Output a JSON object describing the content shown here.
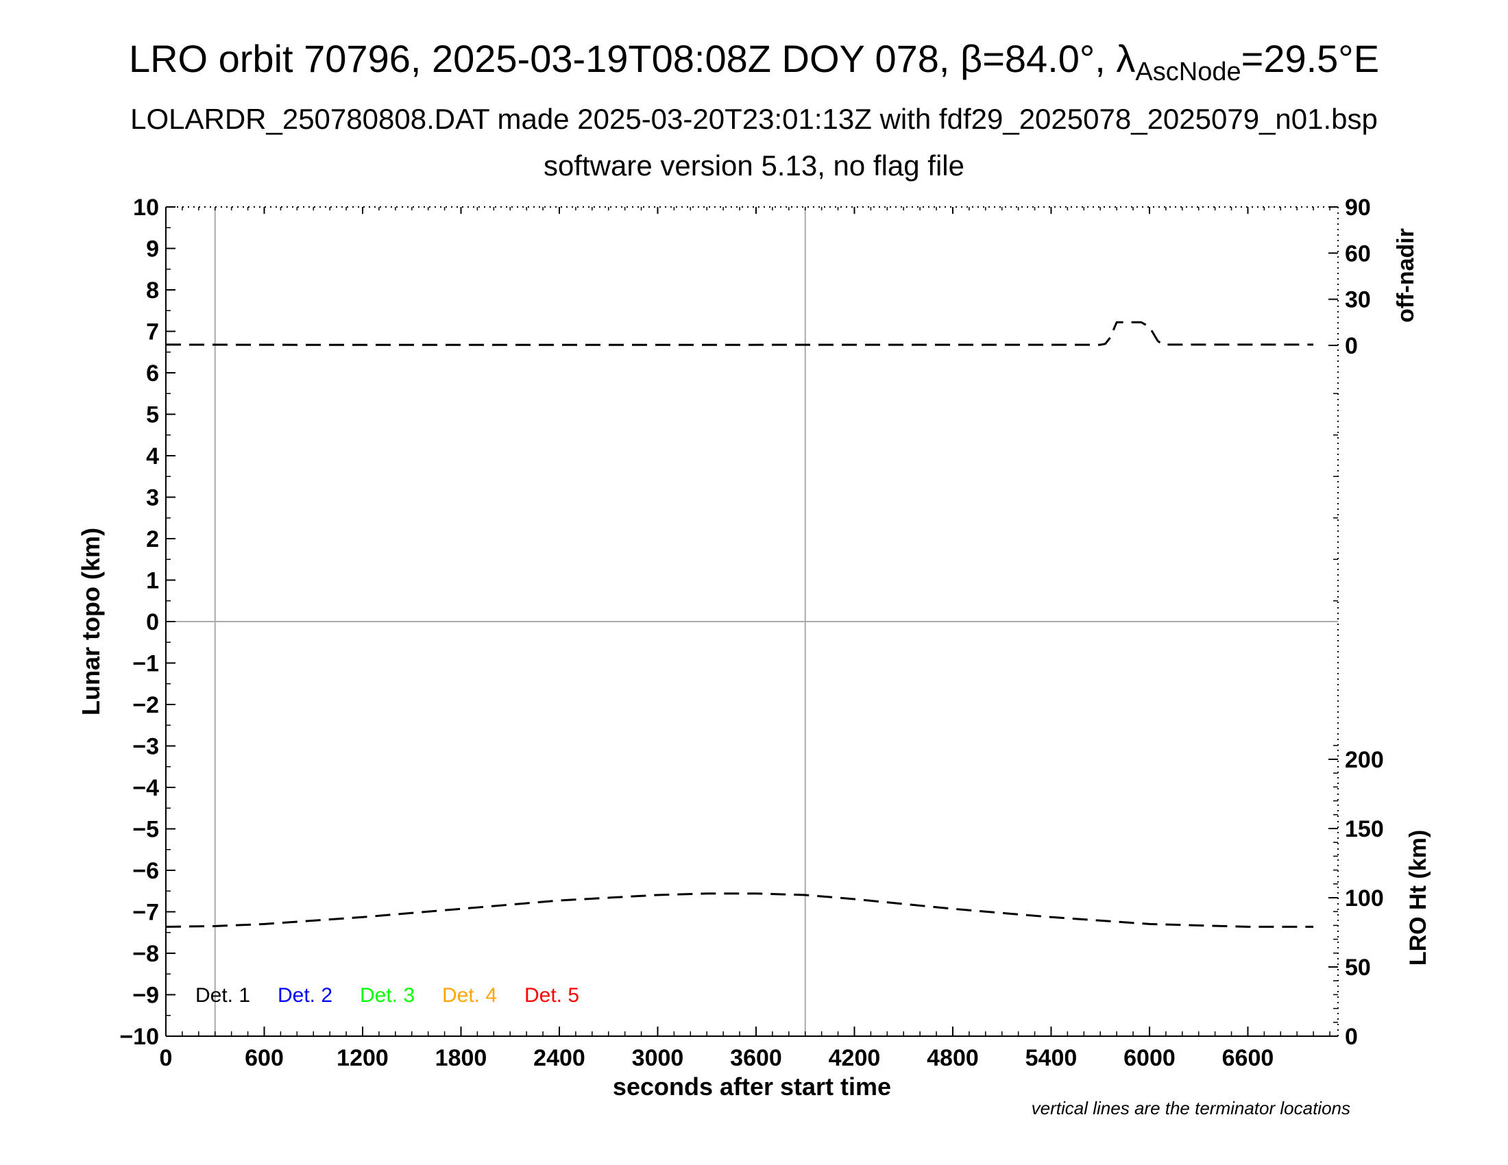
{
  "title": {
    "prefix": "LRO orbit 70796, 2025-03-19T08:08Z DOY 078, β=84.0°, λ",
    "subscript": "AscNode",
    "suffix": "=29.5°E"
  },
  "subtitle": "LOLARDR_250780808.DAT made 2025-03-20T23:01:13Z with fdf29_2025078_2025079_n01.bsp",
  "subtitle2": "software version 5.13, no flag file",
  "footnote": "vertical lines are the terminator locations",
  "colors": {
    "axis": "#000000",
    "grid": "#aaaaaa",
    "det1": "#000000",
    "det2": "#0000ff",
    "det3": "#00ff00",
    "det4": "#ffa500",
    "det5": "#ff0000"
  },
  "chart_data": {
    "type": "line",
    "xlabel": "seconds after start time",
    "ylabel": "Lunar topo (km)",
    "y2label_top": "off-nadir",
    "y2label_bottom": "LRO Ht (km)",
    "xlim": [
      0,
      7150
    ],
    "ylim": [
      -10,
      10
    ],
    "xticks": [
      0,
      600,
      1200,
      1800,
      2400,
      3000,
      3600,
      4200,
      4800,
      5400,
      6000,
      6600
    ],
    "xtick_labels": [
      "0",
      "600",
      "1200",
      "1800",
      "2400",
      "3000",
      "3600",
      "4200",
      "4800",
      "5400",
      "6000",
      "6600"
    ],
    "yticks": [
      -10,
      -9,
      -8,
      -7,
      -6,
      -5,
      -4,
      -3,
      -2,
      -1,
      0,
      1,
      2,
      3,
      4,
      5,
      6,
      7,
      8,
      9,
      10
    ],
    "ytick_labels": [
      "−10",
      "−9",
      "−8",
      "−7",
      "−6",
      "−5",
      "−4",
      "−3",
      "−2",
      "−1",
      "0",
      "1",
      "2",
      "3",
      "4",
      "5",
      "6",
      "7",
      "8",
      "9",
      "10"
    ],
    "offnadir_axis": {
      "ticks": [
        0,
        30,
        60,
        90
      ],
      "tick_labels": [
        "0",
        "30",
        "60",
        "90"
      ]
    },
    "lro_ht_axis": {
      "ticks": [
        0,
        50,
        100,
        150,
        200
      ],
      "tick_labels": [
        "0",
        "50",
        "100",
        "150",
        "200"
      ]
    },
    "terminator_x": [
      300,
      3900
    ],
    "zero_line_y": 0,
    "legend": {
      "position": "bottom-left",
      "entries": [
        "Det. 1",
        "Det. 2",
        "Det. 3",
        "Det. 4",
        "Det. 5"
      ]
    },
    "series": [
      {
        "axis": "off-nadir",
        "style": "dashed",
        "x": [
          0,
          1000,
          2000,
          3000,
          4000,
          5000,
          5700,
          5730,
          5760,
          5800,
          5950,
          6000,
          6050,
          6080,
          7000
        ],
        "values": [
          0.5,
          0.3,
          0.3,
          0.3,
          0.4,
          0.4,
          0.4,
          1,
          5,
          15,
          15,
          12,
          3,
          0.5,
          0.5
        ]
      },
      {
        "axis": "lro-ht",
        "style": "dashed",
        "x": [
          0,
          300,
          600,
          1200,
          1800,
          2400,
          3000,
          3300,
          3600,
          3900,
          4200,
          4800,
          5400,
          6000,
          6600,
          7000
        ],
        "values": [
          79,
          79.5,
          81,
          86,
          92,
          98,
          102,
          103,
          103,
          102,
          99,
          92,
          86,
          81,
          79,
          79
        ]
      }
    ]
  }
}
